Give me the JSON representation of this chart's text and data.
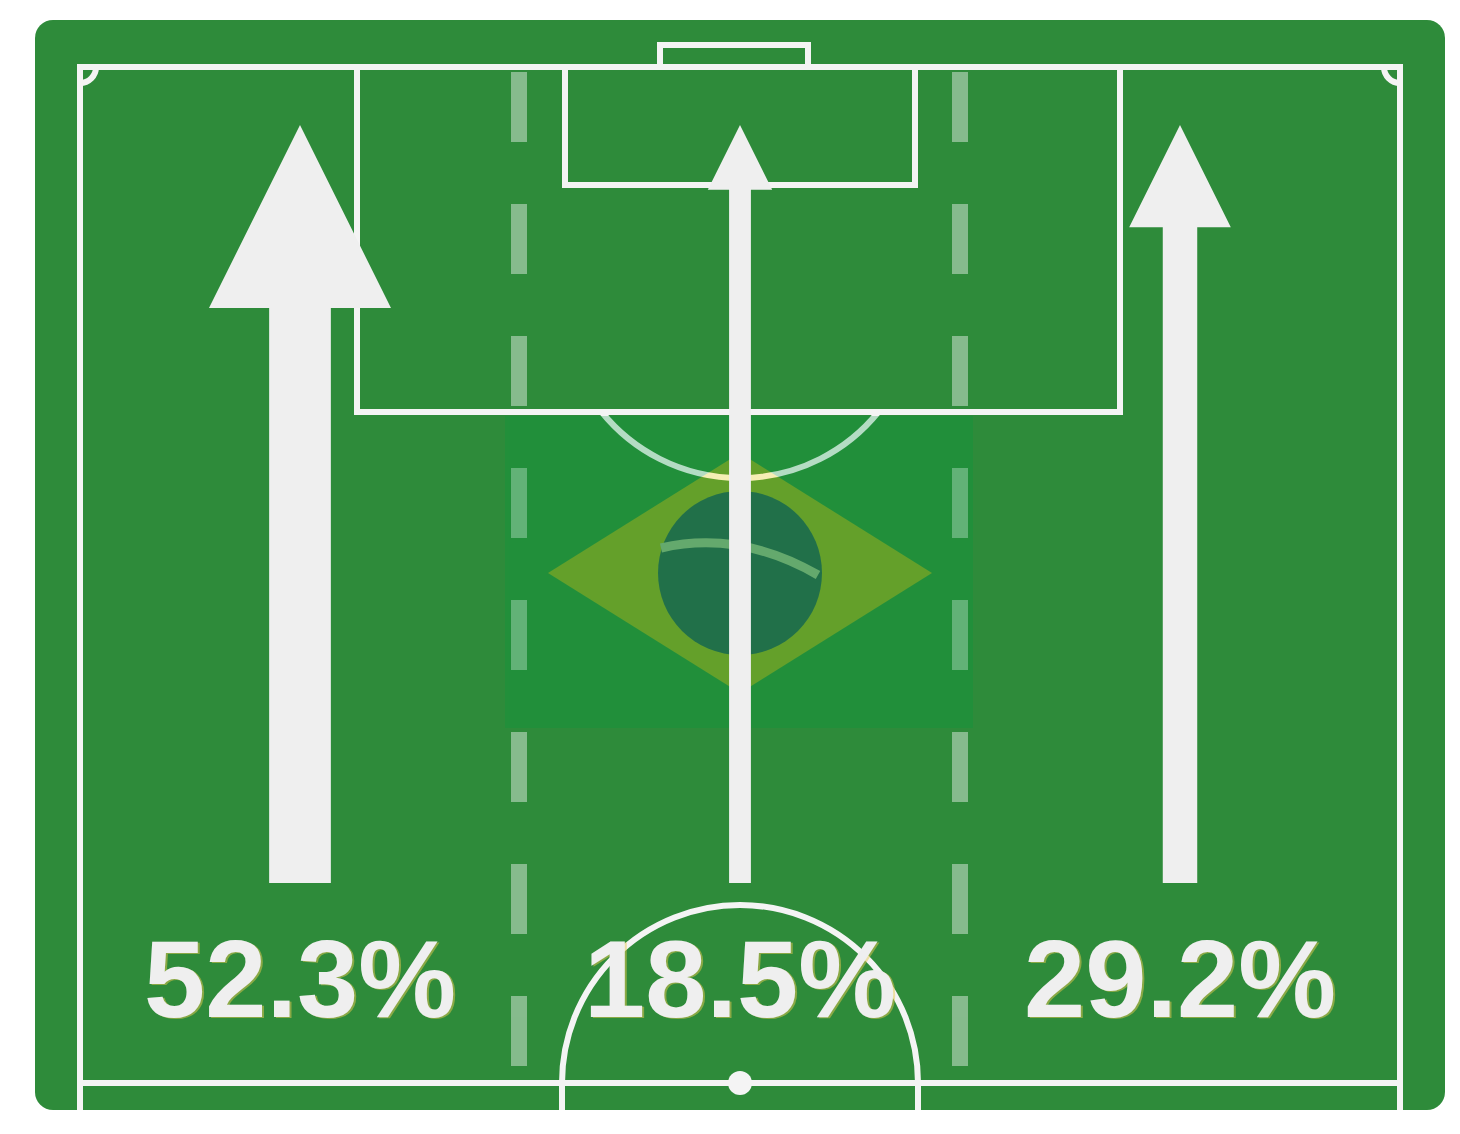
{
  "chart_data": {
    "type": "other",
    "categories": [
      null,
      null,
      null
    ],
    "values": [
      52.3,
      18.5,
      29.2
    ],
    "value_labels": [
      "52.3%",
      "18.5%",
      "29.2%"
    ],
    "color": "#efefef"
  }
}
